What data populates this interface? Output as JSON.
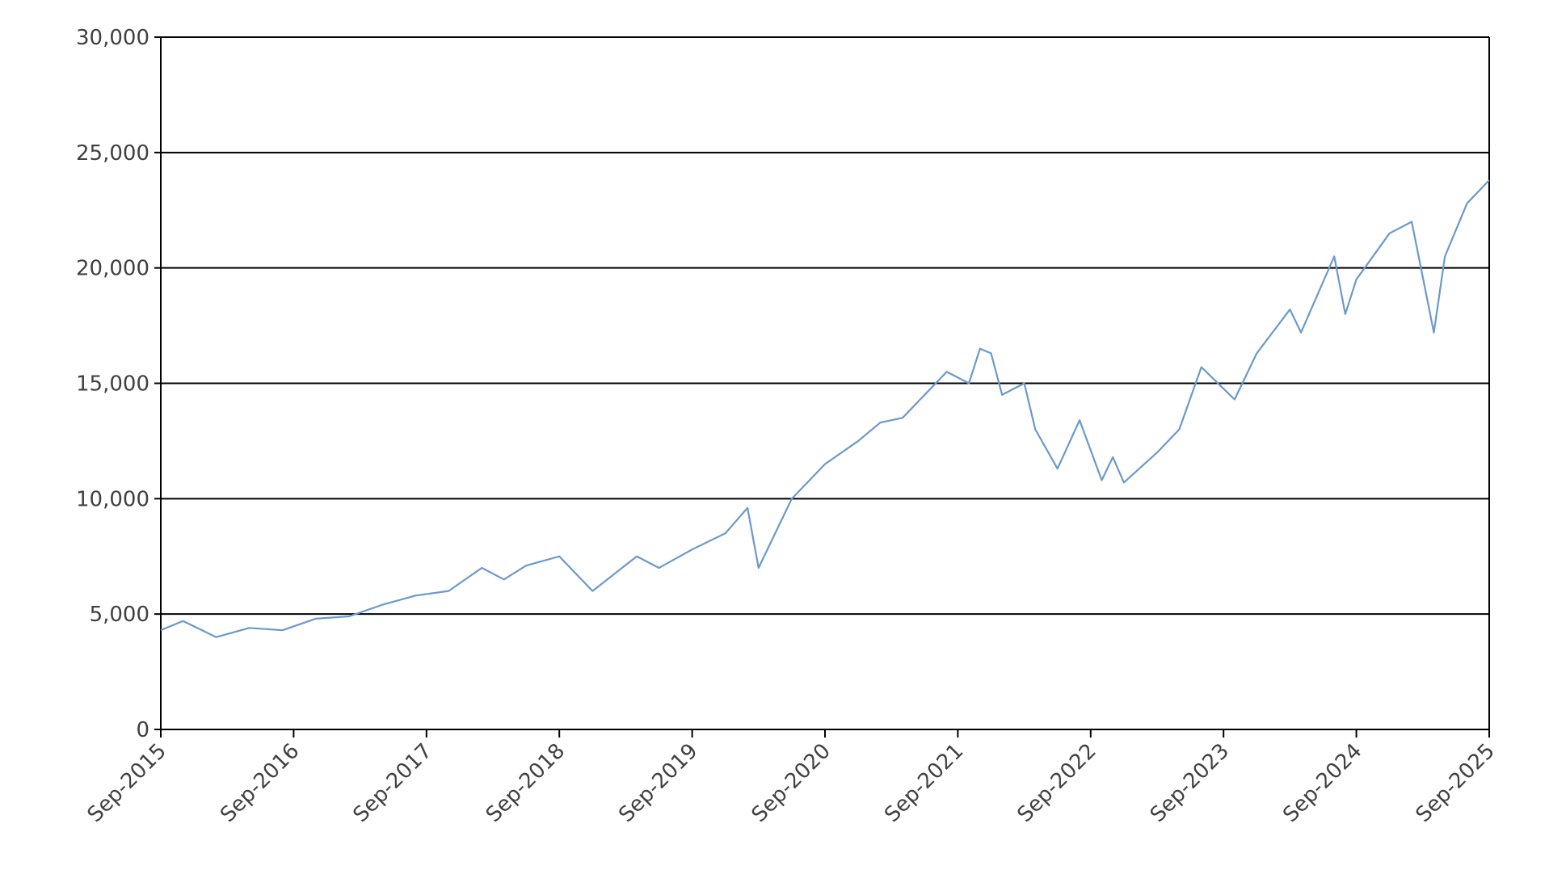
{
  "chart_data": {
    "type": "line",
    "x": [
      "2015-09",
      "2015-11",
      "2016-02",
      "2016-05",
      "2016-08",
      "2016-11",
      "2017-02",
      "2017-05",
      "2017-08",
      "2017-11",
      "2018-02",
      "2018-04",
      "2018-06",
      "2018-09",
      "2018-12",
      "2019-04",
      "2019-06",
      "2019-09",
      "2019-12",
      "2020-02",
      "2020-03",
      "2020-06",
      "2020-09",
      "2020-12",
      "2021-02",
      "2021-04",
      "2021-08",
      "2021-10",
      "2021-11",
      "2021-12",
      "2022-01",
      "2022-03",
      "2022-04",
      "2022-06",
      "2022-08",
      "2022-10",
      "2022-11",
      "2022-12",
      "2023-03",
      "2023-05",
      "2023-07",
      "2023-10",
      "2023-12",
      "2024-03",
      "2024-04",
      "2024-07",
      "2024-08",
      "2024-09",
      "2024-12",
      "2025-02",
      "2025-04",
      "2025-05",
      "2025-07",
      "2025-09"
    ],
    "values": [
      4300,
      4700,
      4000,
      4400,
      4300,
      4800,
      4900,
      5400,
      5800,
      6000,
      7000,
      6500,
      7100,
      7500,
      6000,
      7500,
      7000,
      7800,
      8500,
      9600,
      7000,
      10000,
      11500,
      12500,
      13300,
      13500,
      15500,
      15000,
      16500,
      16300,
      14500,
      15000,
      13000,
      11300,
      13400,
      10800,
      11800,
      10700,
      12000,
      13000,
      15700,
      14300,
      16300,
      18200,
      17200,
      20500,
      18000,
      19500,
      21500,
      22000,
      17200,
      20500,
      22800,
      23800
    ],
    "color": "#6a99cc",
    "xlim": [
      "2015-09",
      "2025-09"
    ],
    "xticks": [
      {
        "value": "2015-09",
        "label": "Sep-2015"
      },
      {
        "value": "2016-09",
        "label": "Sep-2016"
      },
      {
        "value": "2017-09",
        "label": "Sep-2017"
      },
      {
        "value": "2018-09",
        "label": "Sep-2018"
      },
      {
        "value": "2019-09",
        "label": "Sep-2019"
      },
      {
        "value": "2020-09",
        "label": "Sep-2020"
      },
      {
        "value": "2021-09",
        "label": "Sep-2021"
      },
      {
        "value": "2022-09",
        "label": "Sep-2022"
      },
      {
        "value": "2023-09",
        "label": "Sep-2023"
      },
      {
        "value": "2024-09",
        "label": "Sep-2024"
      },
      {
        "value": "2025-09",
        "label": "Sep-2025"
      }
    ],
    "ylim": [
      0,
      30000
    ],
    "yticks": [
      0,
      {
        "value": 5000,
        "label": "5,000"
      },
      {
        "value": 10000,
        "label": "10,000"
      },
      {
        "value": 15000,
        "label": "15,000"
      },
      {
        "value": 20000,
        "label": "20,000"
      },
      {
        "value": 25000,
        "label": "25,000"
      },
      {
        "value": 30000,
        "label": "30,000"
      }
    ],
    "grid": true
  }
}
